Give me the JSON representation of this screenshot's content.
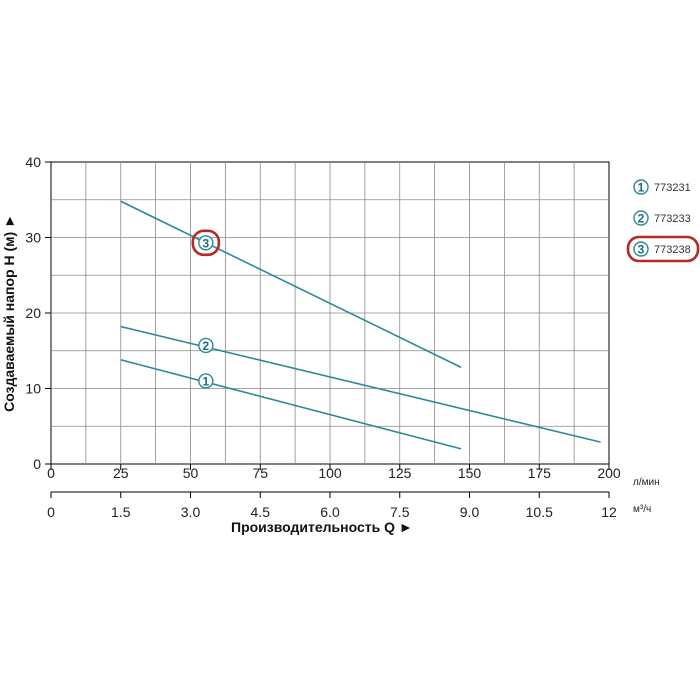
{
  "chart_data": {
    "type": "line",
    "ylabel": "Создаваемый напор Н (м) ►",
    "xlabel": "Производительность Q ►",
    "x_unit_primary": "л/мин",
    "x_unit_secondary": "м³/ч",
    "xlim": [
      0,
      200
    ],
    "ylim": [
      0,
      40
    ],
    "x_ticks": [
      "0",
      "25",
      "50",
      "75",
      "100",
      "125",
      "150",
      "175",
      "200"
    ],
    "x_ticks_secondary": [
      "0",
      "1.5",
      "3.0",
      "4.5",
      "6.0",
      "7.5",
      "9.0",
      "10.5",
      "12"
    ],
    "y_ticks": [
      "0",
      "10",
      "20",
      "30",
      "40"
    ],
    "grid": true,
    "line_color": "#2b8a98",
    "highlight_color": "#b52a24",
    "series": [
      {
        "badge": "1",
        "name": "773231",
        "x": [
          25,
          147
        ],
        "y": [
          13.8,
          2.0
        ],
        "label_at": [
          55.5,
          11.0
        ]
      },
      {
        "badge": "2",
        "name": "773233",
        "x": [
          25,
          197
        ],
        "y": [
          18.2,
          2.9
        ],
        "label_at": [
          55.5,
          15.7
        ]
      },
      {
        "badge": "3",
        "name": "773238",
        "x": [
          25,
          147
        ],
        "y": [
          34.8,
          12.8
        ],
        "label_at": [
          55.5,
          29.3
        ],
        "highlighted": true
      }
    ]
  }
}
